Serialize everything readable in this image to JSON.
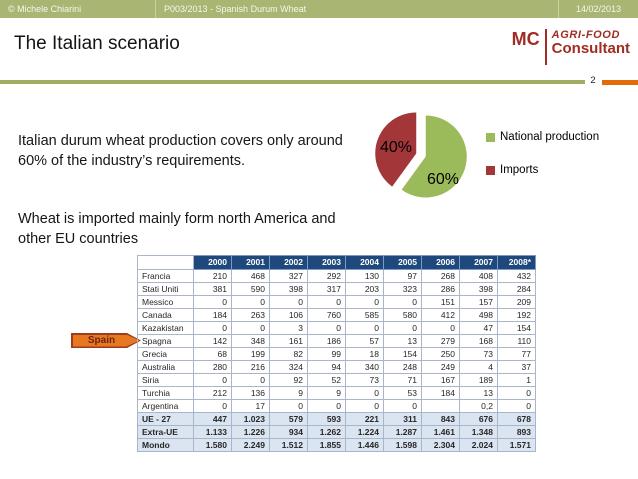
{
  "topbar": {
    "copyright": "© Michele Chiarini",
    "project": "P003/2013 - Spanish Durum Wheat",
    "date": "14/02/2013",
    "bg_color": "#a8b573"
  },
  "title": "The Italian scenario",
  "logo": {
    "initials": "MC",
    "brand_line1": "AGRI-FOOD",
    "brand_line2": "Consultant",
    "color": "#a12c24"
  },
  "page_number": "2",
  "accent_colors": {
    "rule_green": "#9fae63",
    "rule_orange": "#e36c09"
  },
  "paragraphs": {
    "production": "Italian durum wheat production covers only around 60% of the industry’s requirements.",
    "imports": "Wheat is imported mainly form north America and other EU countries"
  },
  "chart_data": {
    "type": "pie",
    "exploded": true,
    "legend_position": "right",
    "slices": [
      {
        "label": "National production",
        "value": 60,
        "display": "60%",
        "color": "#9bba59"
      },
      {
        "label": "Imports",
        "value": 40,
        "display": "40%",
        "color": "#a33639"
      }
    ]
  },
  "spain_callout": {
    "label": "Spain",
    "fill": "#e87722",
    "border": "#9c3d1e",
    "text_color": "#6d2413"
  },
  "table": {
    "header_bg": "#1f497d",
    "summary_bg": "#dbe5f1",
    "columns": [
      "",
      "2000",
      "2001",
      "2002",
      "2003",
      "2004",
      "2005",
      "2006",
      "2007",
      "2008*"
    ],
    "rows": [
      {
        "label": "Francia",
        "summary": false,
        "values": [
          "210",
          "468",
          "327",
          "292",
          "130",
          "97",
          "268",
          "408",
          "432"
        ]
      },
      {
        "label": "Stati Uniti",
        "summary": false,
        "values": [
          "381",
          "590",
          "398",
          "317",
          "203",
          "323",
          "286",
          "398",
          "284"
        ]
      },
      {
        "label": "Messico",
        "summary": false,
        "values": [
          "0",
          "0",
          "0",
          "0",
          "0",
          "0",
          "151",
          "157",
          "209"
        ]
      },
      {
        "label": "Canada",
        "summary": false,
        "values": [
          "184",
          "263",
          "106",
          "760",
          "585",
          "580",
          "412",
          "498",
          "192"
        ]
      },
      {
        "label": "Kazakistan",
        "summary": false,
        "values": [
          "0",
          "0",
          "3",
          "0",
          "0",
          "0",
          "0",
          "47",
          "154"
        ]
      },
      {
        "label": "Spagna",
        "summary": false,
        "values": [
          "142",
          "348",
          "161",
          "186",
          "57",
          "13",
          "279",
          "168",
          "110"
        ]
      },
      {
        "label": "Grecia",
        "summary": false,
        "values": [
          "68",
          "199",
          "82",
          "99",
          "18",
          "154",
          "250",
          "73",
          "77"
        ]
      },
      {
        "label": "Australia",
        "summary": false,
        "values": [
          "280",
          "216",
          "324",
          "94",
          "340",
          "248",
          "249",
          "4",
          "37"
        ]
      },
      {
        "label": "Siria",
        "summary": false,
        "values": [
          "0",
          "0",
          "92",
          "52",
          "73",
          "71",
          "167",
          "189",
          "1"
        ]
      },
      {
        "label": "Turchia",
        "summary": false,
        "values": [
          "212",
          "136",
          "9",
          "9",
          "0",
          "53",
          "184",
          "13",
          "0"
        ]
      },
      {
        "label": "Argentina",
        "summary": false,
        "values": [
          "0",
          "17",
          "0",
          "0",
          "0",
          "0",
          "",
          "0,2",
          "0"
        ]
      },
      {
        "label": "UE - 27",
        "summary": true,
        "values": [
          "447",
          "1.023",
          "579",
          "593",
          "221",
          "311",
          "843",
          "676",
          "678"
        ]
      },
      {
        "label": "Extra-UE",
        "summary": true,
        "values": [
          "1.133",
          "1.226",
          "934",
          "1.262",
          "1.224",
          "1.287",
          "1.461",
          "1.348",
          "893"
        ]
      },
      {
        "label": "Mondo",
        "summary": true,
        "values": [
          "1.580",
          "2.249",
          "1.512",
          "1.855",
          "1.446",
          "1.598",
          "2.304",
          "2.024",
          "1.571"
        ]
      }
    ]
  }
}
